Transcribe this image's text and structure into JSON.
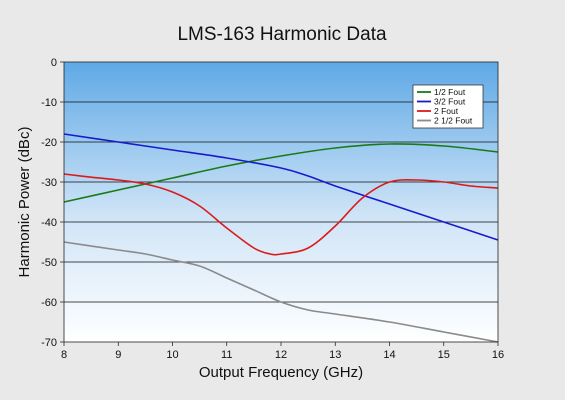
{
  "chart_data": {
    "type": "line",
    "title": "LMS-163 Harmonic Data",
    "xlabel": "Output Frequency (GHz)",
    "ylabel": "Harmonic Power (dBc)",
    "xlim": [
      8,
      16
    ],
    "ylim": [
      -70,
      0
    ],
    "xticks": [
      8,
      9,
      10,
      11,
      12,
      13,
      14,
      15,
      16
    ],
    "yticks": [
      0,
      -10,
      -20,
      -30,
      -40,
      -50,
      -60,
      -70
    ],
    "grid": "horizontal",
    "legend_position": "top-right",
    "series": [
      {
        "name": "1/2 Fout",
        "color": "#1a7a1a",
        "x": [
          8,
          9,
          10,
          11,
          12,
          13,
          14,
          15,
          16
        ],
        "y": [
          -35,
          -32,
          -29,
          -26,
          -23.5,
          -21.5,
          -20.5,
          -21,
          -22.5
        ]
      },
      {
        "name": "3/2 Fout",
        "color": "#1a1acc",
        "x": [
          8,
          9,
          10,
          11,
          12,
          12.5,
          13,
          14,
          15,
          16
        ],
        "y": [
          -18,
          -20,
          -22,
          -24,
          -26.5,
          -28.5,
          -31,
          -35.5,
          -40,
          -44.5
        ]
      },
      {
        "name": "2 Fout",
        "color": "#dd1a1a",
        "x": [
          8,
          8.5,
          9,
          9.5,
          10,
          10.5,
          11,
          11.5,
          11.8,
          12,
          12.5,
          13,
          13.5,
          14,
          14.5,
          15,
          15.5,
          16
        ],
        "y": [
          -28,
          -28.8,
          -29.5,
          -30.5,
          -32.5,
          -36,
          -41.5,
          -46.5,
          -48,
          -48,
          -46.5,
          -41,
          -34,
          -30,
          -29.5,
          -30,
          -31,
          -31.5
        ]
      },
      {
        "name": "2 1/2 Fout",
        "color": "#8a8a8a",
        "x": [
          8,
          9,
          9.5,
          10,
          10.5,
          11,
          11.5,
          12,
          12.5,
          13,
          14,
          15,
          16
        ],
        "y": [
          -45,
          -47,
          -48,
          -49.5,
          -51,
          -54,
          -57,
          -60,
          -62,
          -63,
          -65,
          -67.5,
          -70
        ]
      }
    ]
  }
}
